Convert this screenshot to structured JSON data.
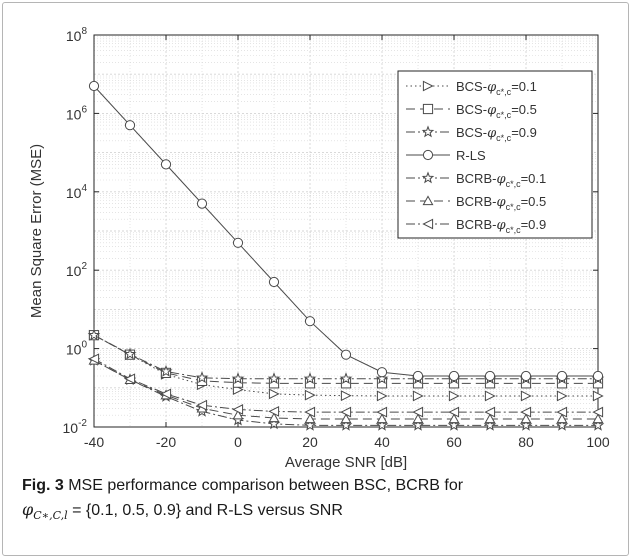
{
  "chart_data": {
    "type": "line",
    "title": "",
    "xlabel": "Average SNR [dB]",
    "ylabel": "Mean Square Error (MSE)",
    "xlim": [
      -40,
      100
    ],
    "ylim": [
      0.01,
      100000000
    ],
    "yscale": "log",
    "grid": true,
    "minor_grid": true,
    "legend_position": "top-right",
    "x_ticks": [
      -40,
      -20,
      0,
      20,
      40,
      60,
      80,
      100
    ],
    "x_tick_labels": [
      "-40",
      "-20",
      "0",
      "20",
      "40",
      "60",
      "80",
      "100"
    ],
    "y_tick_labels": [
      {
        "base": "10",
        "exp": "-2",
        "value": 0.01
      },
      {
        "base": "10",
        "exp": "0",
        "value": 1
      },
      {
        "base": "10",
        "exp": "2",
        "value": 100
      },
      {
        "base": "10",
        "exp": "4",
        "value": 10000
      },
      {
        "base": "10",
        "exp": "6",
        "value": 1000000
      },
      {
        "base": "10",
        "exp": "8",
        "value": 100000000
      }
    ],
    "x": [
      -40,
      -30,
      -20,
      -10,
      0,
      10,
      20,
      30,
      40,
      50,
      60,
      70,
      80,
      90,
      100
    ],
    "series": [
      {
        "legend_main": "BCS-",
        "legend_sym": "φ",
        "legend_sub": "c*,c",
        "legend_val": "=0.1",
        "marker": "triangle-right",
        "dash": "1.5,3",
        "values": [
          2.2,
          0.7,
          0.22,
          0.12,
          0.09,
          0.07,
          0.065,
          0.063,
          0.062,
          0.062,
          0.062,
          0.062,
          0.062,
          0.062,
          0.062
        ]
      },
      {
        "legend_main": "BCS-",
        "legend_sym": "φ",
        "legend_sub": "c*,c",
        "legend_val": "=0.5",
        "marker": "square",
        "dash": "9,5",
        "values": [
          2.2,
          0.7,
          0.24,
          0.15,
          0.135,
          0.13,
          0.13,
          0.13,
          0.13,
          0.13,
          0.13,
          0.13,
          0.13,
          0.13,
          0.13
        ]
      },
      {
        "legend_main": "BCS-",
        "legend_sym": "φ",
        "legend_sub": "c*,c",
        "legend_val": "=0.9",
        "marker": "star",
        "dash": "9,3,2,3",
        "values": [
          2.2,
          0.72,
          0.26,
          0.18,
          0.17,
          0.17,
          0.17,
          0.17,
          0.17,
          0.17,
          0.17,
          0.17,
          0.17,
          0.17,
          0.17
        ]
      },
      {
        "legend_main": "R-LS",
        "legend_sym": "",
        "legend_sub": "",
        "legend_val": "",
        "marker": "circle",
        "dash": "",
        "values": [
          5000000,
          500000,
          50000,
          5000,
          500,
          50,
          5,
          0.7,
          0.25,
          0.2,
          0.2,
          0.2,
          0.2,
          0.2,
          0.2
        ]
      },
      {
        "legend_main": "BCRB-",
        "legend_sym": "φ",
        "legend_sub": "c*,c",
        "legend_val": "=0.1",
        "marker": "star",
        "dash": "9,3,2,3",
        "values": [
          0.5,
          0.16,
          0.06,
          0.025,
          0.015,
          0.012,
          0.011,
          0.011,
          0.011,
          0.011,
          0.011,
          0.011,
          0.011,
          0.011,
          0.011
        ]
      },
      {
        "legend_main": "BCRB-",
        "legend_sym": "φ",
        "legend_sub": "c*,c",
        "legend_val": "=0.5",
        "marker": "triangle-up",
        "dash": "9,5",
        "values": [
          0.5,
          0.16,
          0.065,
          0.03,
          0.02,
          0.017,
          0.016,
          0.016,
          0.016,
          0.016,
          0.016,
          0.016,
          0.016,
          0.016,
          0.016
        ]
      },
      {
        "legend_main": "BCRB-",
        "legend_sym": "φ",
        "legend_sub": "c*,c",
        "legend_val": "=0.9",
        "marker": "triangle-left",
        "dash": "9,3,2,3",
        "values": [
          0.55,
          0.17,
          0.07,
          0.036,
          0.028,
          0.025,
          0.024,
          0.024,
          0.024,
          0.024,
          0.024,
          0.024,
          0.024,
          0.024,
          0.024
        ]
      }
    ]
  },
  "caption": {
    "fig_label": "Fig. 3",
    "text_1": " MSE performance comparison between BSC, BCRB for",
    "math_phi": "φ",
    "math_sub": "C∗,C,l",
    "math_set": " = {0.1, 0.5, 0.9}",
    "text_2": " and R-LS versus SNR"
  },
  "colors": {
    "line": "#4a4a4a",
    "grid": "#d4d4d4",
    "axis": "#262626",
    "frame": "#b5b5b5"
  }
}
